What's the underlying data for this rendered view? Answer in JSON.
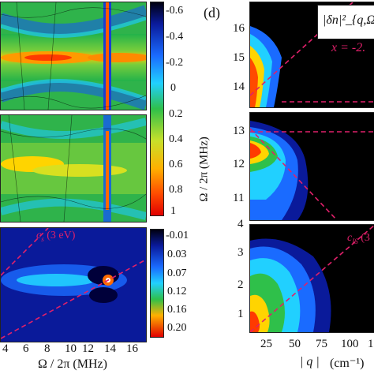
{
  "left": {
    "x_axis": {
      "label": "Ω / 2π (MHz)",
      "ticks": [
        "4",
        "6",
        "8",
        "10",
        "12",
        "14",
        "16"
      ]
    },
    "colorbar_top": {
      "ticks": [
        "-0.6",
        "-0.4",
        "-0.2",
        "0",
        "0.2",
        "0.4",
        "0.6",
        "0.8",
        "1"
      ]
    },
    "colorbar_bottom": {
      "ticks": [
        "-0.01",
        "0.03",
        "0.07",
        "0.12",
        "0.16",
        "0.20"
      ]
    },
    "annotation": "c_s (3 eV)",
    "annotation_main": "c",
    "annotation_sub": "s",
    "annotation_tail": " (3 eV)"
  },
  "right": {
    "panel_label": "(d)",
    "legend_formula": "|δn|²_{q,Ω}",
    "x_param_text": "x = -2.",
    "y_axis": {
      "label": "Ω / 2π (MHz)",
      "ticks_top": [
        "14",
        "15",
        "16"
      ],
      "ticks_mid": [
        "11",
        "12",
        "13"
      ],
      "ticks_bottom": [
        "1",
        "2",
        "3",
        "4"
      ]
    },
    "x_axis": {
      "ticks": [
        "25",
        "50",
        "75",
        "100",
        "1"
      ],
      "label_q": "| q |",
      "label_unit": "(cm⁻¹)"
    },
    "annotation": "c_IS (3",
    "annotation_main": "c",
    "annotation_sub": "IS",
    "annotation_tail": " (3"
  },
  "colors": {
    "dash": "#e0206a",
    "black": "#000000"
  }
}
